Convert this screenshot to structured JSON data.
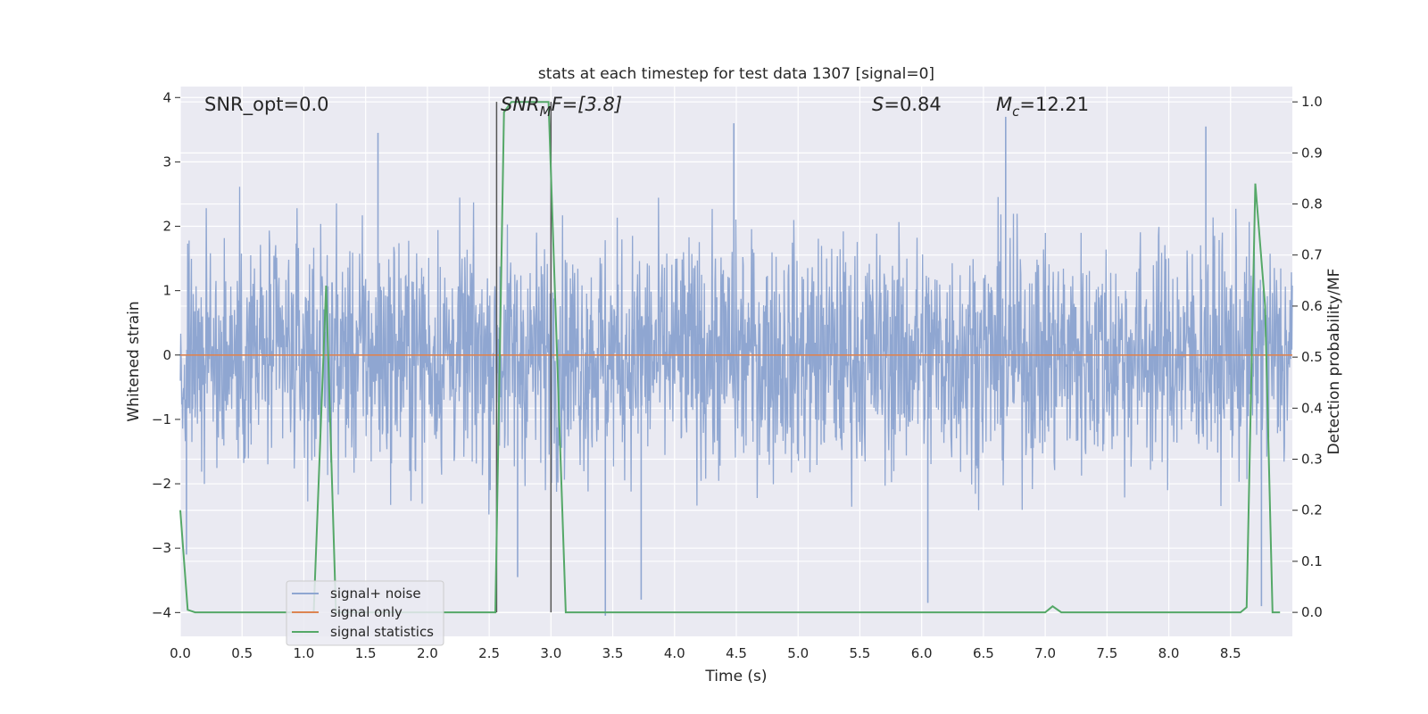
{
  "chart_data": {
    "type": "line",
    "title": "stats at each timestep for test data 1307 [signal=0]",
    "xlabel": "Time (s)",
    "ylabel": "Whitened strain",
    "ylabel_right": "Detection probability/MF",
    "xlim": [
      0.0,
      9.0
    ],
    "ylim": [
      -4.37,
      4.17
    ],
    "ylim_right": [
      -0.047,
      1.03
    ],
    "x_ticks": [
      "0.0",
      "0.5",
      "1.0",
      "1.5",
      "2.0",
      "2.5",
      "3.0",
      "3.5",
      "4.0",
      "4.5",
      "5.0",
      "5.5",
      "6.0",
      "6.5",
      "7.0",
      "7.5",
      "8.0",
      "8.5"
    ],
    "y_ticks": [
      "4",
      "3",
      "2",
      "1",
      "0",
      "−1",
      "−2",
      "−3",
      "−4"
    ],
    "y_right_ticks": [
      "1.0",
      "0.9",
      "0.8",
      "0.7",
      "0.6",
      "0.5",
      "0.4",
      "0.3",
      "0.2",
      "0.1",
      "0.0"
    ],
    "grid": true,
    "legend_position": "lower-left",
    "annotations": {
      "snr_opt": "SNR_opt=0.0",
      "snr_mf_prefix": "SNR",
      "snr_mf_sub": "M",
      "snr_mf_suffix": "F=[3.8]",
      "s_prefix": "S",
      "s_suffix": "=0.84",
      "mc_prefix": "M",
      "mc_sub": "c",
      "mc_suffix": "=12.21"
    },
    "vertical_markers": [
      2.56,
      3.0
    ],
    "series": [
      {
        "name": "signal+ noise",
        "color": "#8fa6d1",
        "axis": "left",
        "description": "dense whitened noise, mostly within about -2.6 to 2.6 with occasional spikes to about -4.1 and 3.7",
        "noise_band": [
          -2.6,
          2.6
        ],
        "outliers": [
          {
            "x": 0.05,
            "y": -3.1
          },
          {
            "x": 1.6,
            "y": 3.45
          },
          {
            "x": 2.73,
            "y": -3.45
          },
          {
            "x": 3.44,
            "y": -4.05
          },
          {
            "x": 3.73,
            "y": -3.8
          },
          {
            "x": 4.48,
            "y": 3.6
          },
          {
            "x": 6.05,
            "y": -3.85
          },
          {
            "x": 6.68,
            "y": 3.7
          },
          {
            "x": 8.3,
            "y": 3.55
          },
          {
            "x": 8.75,
            "y": -3.9
          }
        ]
      },
      {
        "name": "signal only",
        "color": "#dd8452",
        "axis": "left",
        "x": [
          0.0,
          9.0
        ],
        "y": [
          0.0,
          0.0
        ]
      },
      {
        "name": "signal statistics",
        "color": "#55a868",
        "axis": "right",
        "x": [
          0.0,
          0.06,
          0.12,
          1.08,
          1.18,
          1.26,
          2.55,
          2.62,
          2.68,
          2.98,
          3.12,
          7.0,
          7.06,
          7.13,
          8.58,
          8.63,
          8.7,
          8.78,
          8.84,
          8.9
        ],
        "y": [
          0.2,
          0.005,
          0.0,
          0.0,
          0.64,
          0.0,
          0.0,
          0.98,
          1.0,
          1.0,
          0.0,
          0.0,
          0.012,
          0.0,
          0.0,
          0.01,
          0.84,
          0.6,
          0.0,
          0.0
        ]
      }
    ]
  }
}
